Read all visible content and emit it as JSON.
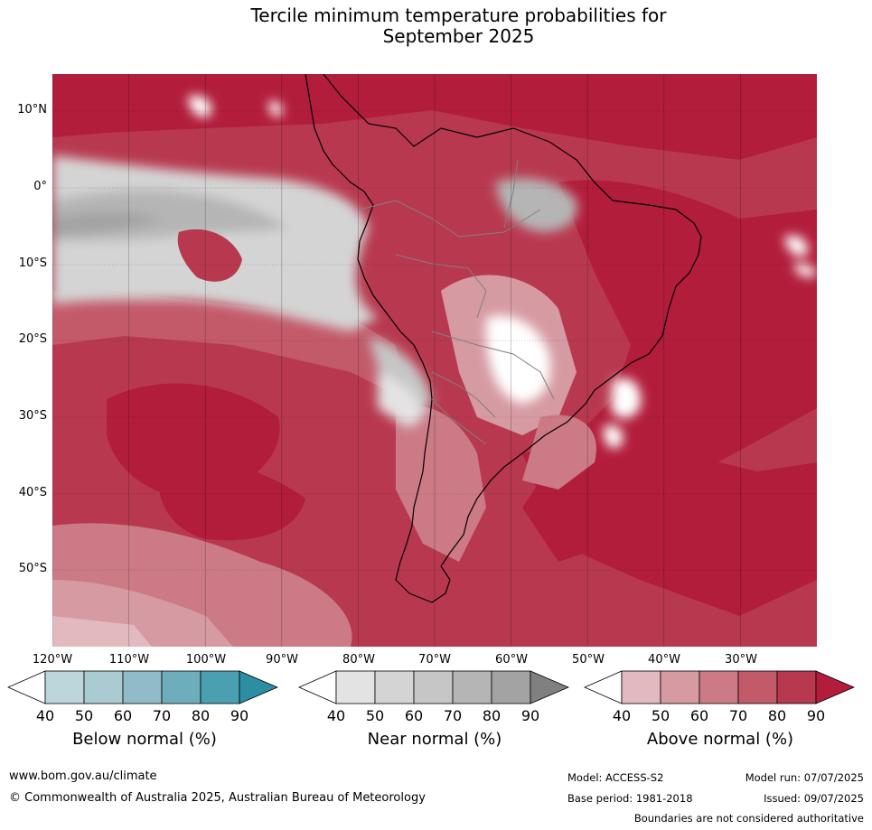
{
  "title": {
    "line1": "Tercile minimum temperature probabilities for",
    "line2": "September 2025"
  },
  "map": {
    "region": "South America",
    "latitude_labels": [
      "10°N",
      "0°",
      "10°S",
      "20°S",
      "30°S",
      "40°S",
      "50°S"
    ],
    "longitude_labels": [
      "120°W",
      "110°W",
      "100°W",
      "90°W",
      "80°W",
      "70°W",
      "60°W",
      "50°W",
      "40°W",
      "30°W"
    ],
    "gridlines": "dotted",
    "coastlines": "black",
    "borders": "grey",
    "dominant_category": "Above normal"
  },
  "colorbars": [
    {
      "label": "Below normal (%)",
      "ticks": [
        "40",
        "50",
        "60",
        "70",
        "80",
        "90"
      ],
      "colors": [
        "#ffffff",
        "#bcd6dc",
        "#a9cbd1",
        "#8fbcc6",
        "#6eaebc",
        "#4aa0b1",
        "#2b8ea3"
      ]
    },
    {
      "label": "Near normal (%)",
      "ticks": [
        "40",
        "50",
        "60",
        "70",
        "80",
        "90"
      ],
      "colors": [
        "#ffffff",
        "#e3e3e3",
        "#d4d4d4",
        "#c6c6c6",
        "#b5b5b5",
        "#a3a3a3",
        "#808080"
      ]
    },
    {
      "label": "Above normal (%)",
      "ticks": [
        "40",
        "50",
        "60",
        "70",
        "80",
        "90"
      ],
      "colors": [
        "#ffffff",
        "#e2b9bf",
        "#d69aa2",
        "#cc7a86",
        "#c35a6a",
        "#b8394f",
        "#b21d3b"
      ]
    }
  ],
  "footer": {
    "website": "www.bom.gov.au/climate",
    "copyright": "© Commonwealth of Australia 2025, Australian Bureau of Meteorology",
    "model": "Model: ACCESS-S2",
    "model_run": "Model run: 07/07/2025",
    "base_period": "Base period: 1981-2018",
    "issued": "Issued: 09/07/2025",
    "disclaimer": "Boundaries are not considered authoritative"
  }
}
